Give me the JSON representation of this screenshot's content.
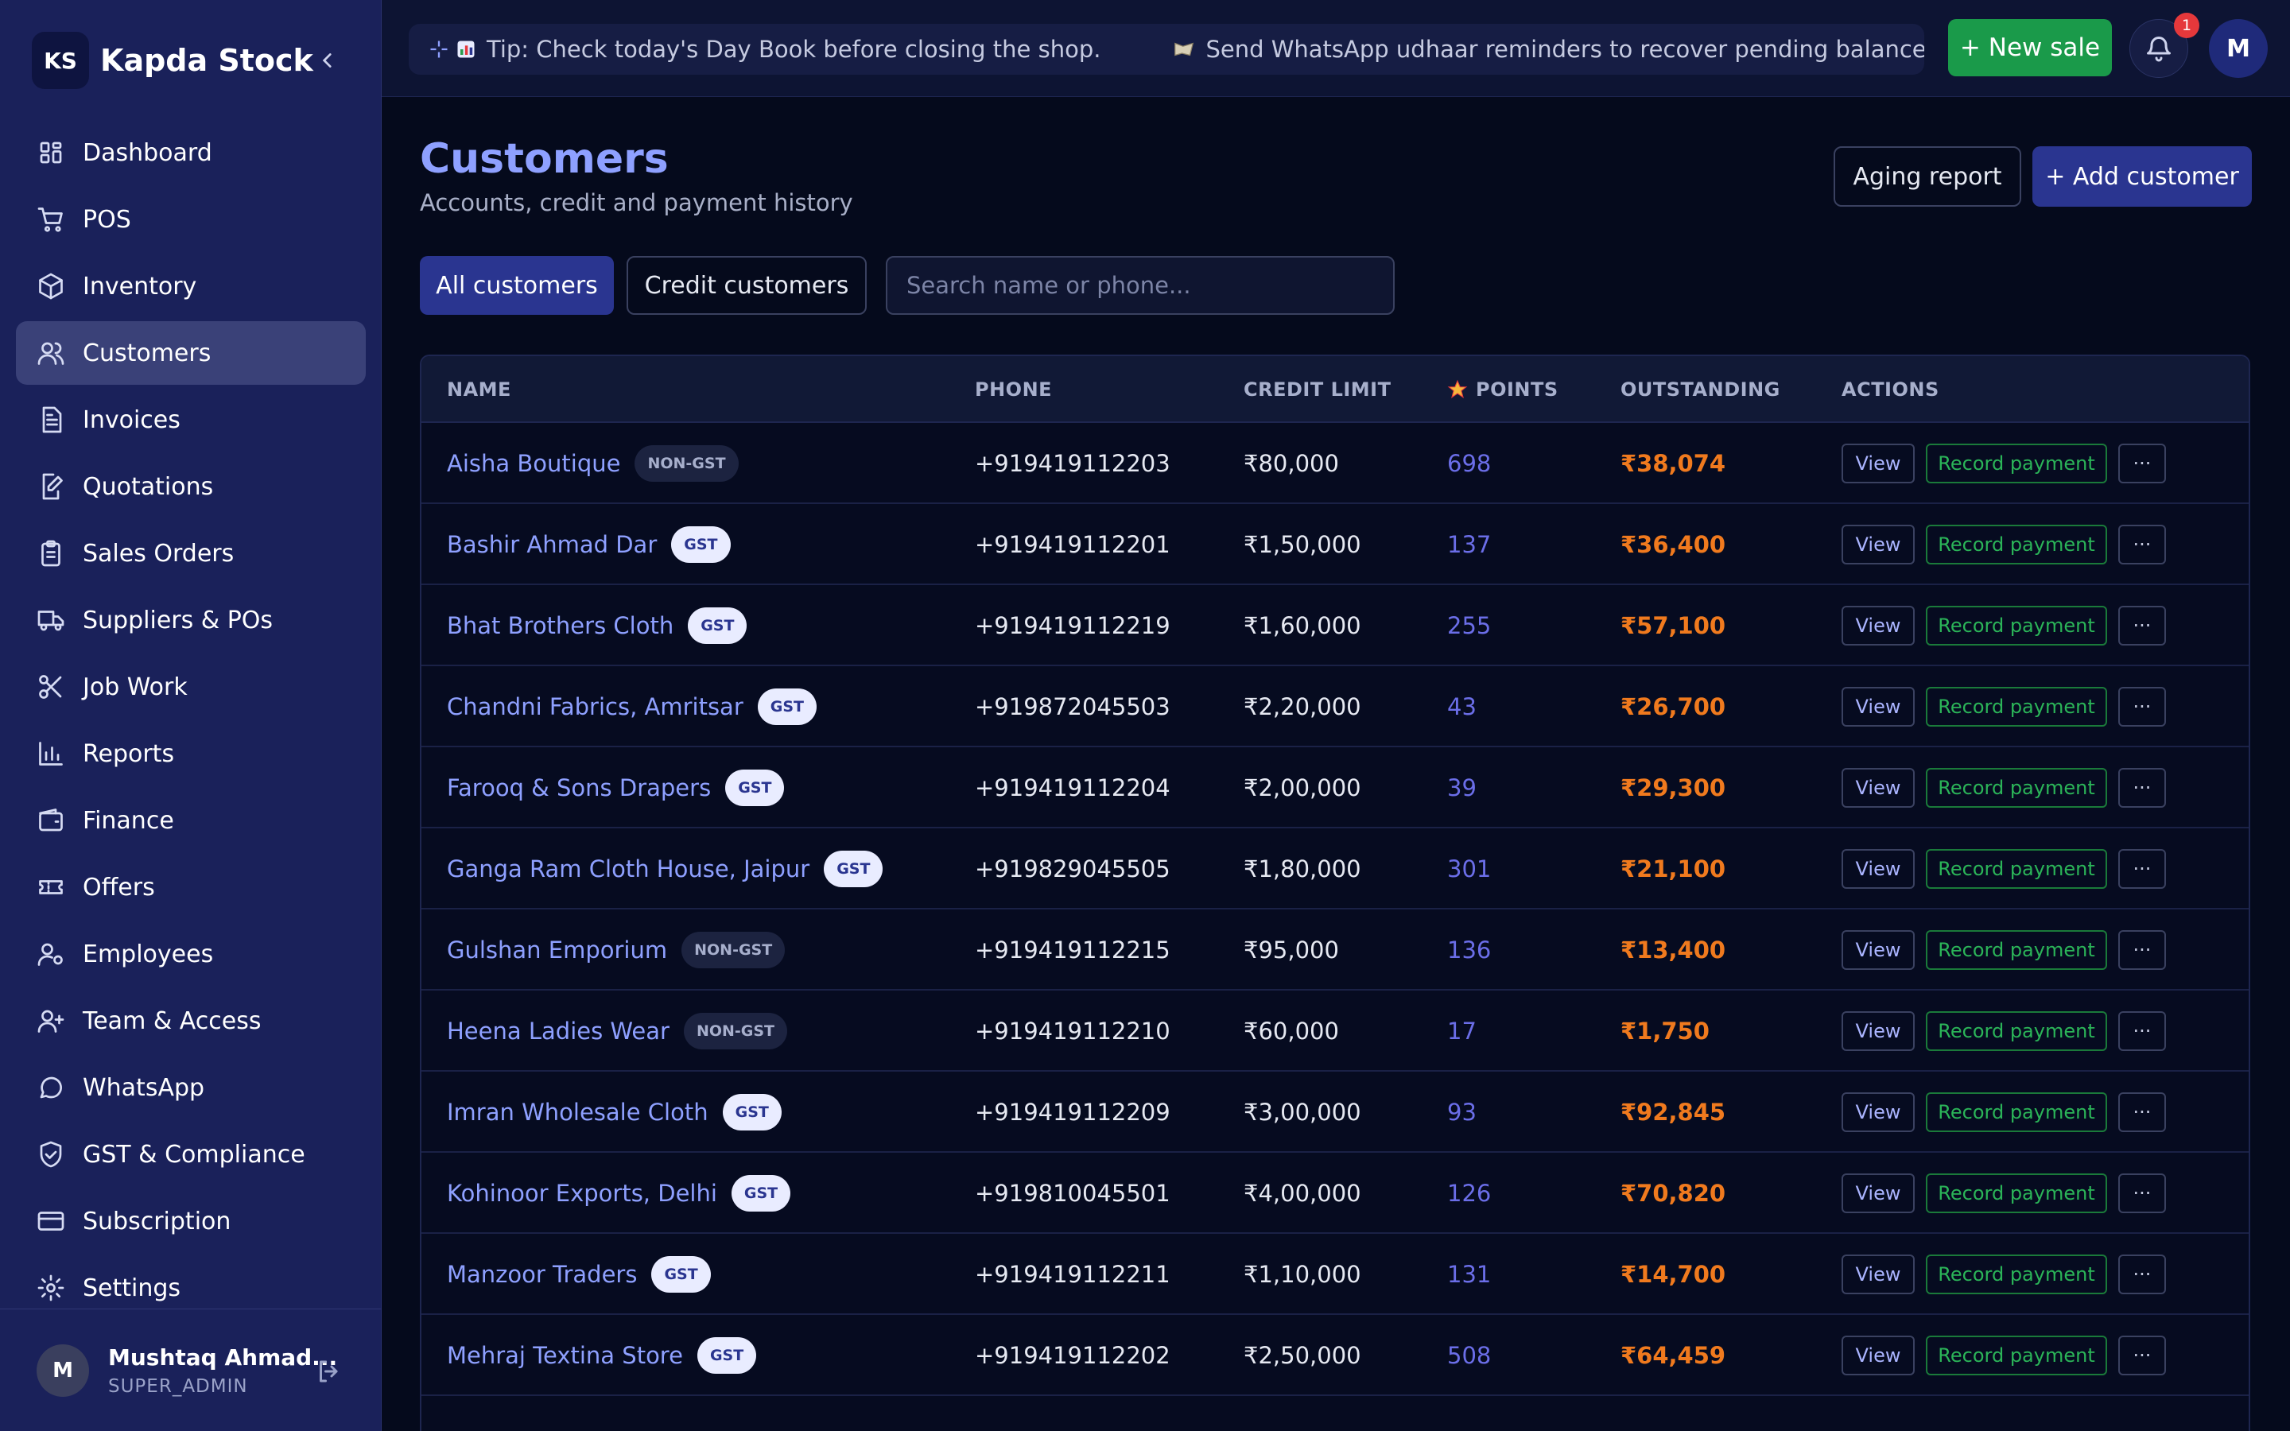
{
  "app": {
    "logo_initials": "KS",
    "name": "Kapda Stock"
  },
  "sidebar": {
    "items": [
      {
        "label": "Dashboard",
        "icon": "grid-icon",
        "active": false
      },
      {
        "label": "POS",
        "icon": "cart-icon",
        "active": false
      },
      {
        "label": "Inventory",
        "icon": "box-icon",
        "active": false
      },
      {
        "label": "Customers",
        "icon": "users-icon",
        "active": true
      },
      {
        "label": "Invoices",
        "icon": "document-icon",
        "active": false
      },
      {
        "label": "Quotations",
        "icon": "edit-doc-icon",
        "active": false
      },
      {
        "label": "Sales Orders",
        "icon": "clipboard-icon",
        "active": false
      },
      {
        "label": "Suppliers & POs",
        "icon": "truck-icon",
        "active": false
      },
      {
        "label": "Job Work",
        "icon": "scissors-icon",
        "active": false
      },
      {
        "label": "Reports",
        "icon": "bar-chart-icon",
        "active": false
      },
      {
        "label": "Finance",
        "icon": "wallet-icon",
        "active": false
      },
      {
        "label": "Offers",
        "icon": "ticket-icon",
        "active": false
      },
      {
        "label": "Employees",
        "icon": "user-cog-icon",
        "active": false
      },
      {
        "label": "Team & Access",
        "icon": "user-plus-icon",
        "active": false
      },
      {
        "label": "WhatsApp",
        "icon": "chat-icon",
        "active": false
      },
      {
        "label": "GST & Compliance",
        "icon": "shield-check-icon",
        "active": false
      },
      {
        "label": "Subscription",
        "icon": "credit-card-icon",
        "active": false
      },
      {
        "label": "Settings",
        "icon": "gear-icon",
        "active": false
      }
    ],
    "user": {
      "initial": "M",
      "name": "Mushtaq Ahmad...",
      "role": "SUPER_ADMIN"
    }
  },
  "topbar": {
    "tip1": "Tip: Check today's Day Book before closing the shop.",
    "tip2": "Send WhatsApp udhaar reminders to recover pending balances faster.",
    "new_sale": "+ New sale",
    "notification_count": "1",
    "avatar_initial": "M"
  },
  "header": {
    "title": "Customers",
    "subtitle": "Accounts, credit and payment history",
    "aging_report": "Aging report",
    "add_customer": "+ Add customer"
  },
  "filters": {
    "all": "All customers",
    "credit": "Credit customers",
    "search_placeholder": "Search name or phone..."
  },
  "table": {
    "columns": [
      "NAME",
      "PHONE",
      "CREDIT LIMIT",
      "POINTS",
      "OUTSTANDING",
      "ACTIONS"
    ],
    "actions": {
      "view": "View",
      "pay": "Record payment",
      "more": "···"
    },
    "rows": [
      {
        "name": "Aisha Boutique",
        "tag": "NON-GST",
        "phone": "+919419112203",
        "limit": "₹80,000",
        "points": "698",
        "outstanding": "₹38,074"
      },
      {
        "name": "Bashir Ahmad Dar",
        "tag": "GST",
        "phone": "+919419112201",
        "limit": "₹1,50,000",
        "points": "137",
        "outstanding": "₹36,400"
      },
      {
        "name": "Bhat Brothers Cloth",
        "tag": "GST",
        "phone": "+919419112219",
        "limit": "₹1,60,000",
        "points": "255",
        "outstanding": "₹57,100"
      },
      {
        "name": "Chandni Fabrics, Amritsar",
        "tag": "GST",
        "phone": "+919872045503",
        "limit": "₹2,20,000",
        "points": "43",
        "outstanding": "₹26,700"
      },
      {
        "name": "Farooq & Sons Drapers",
        "tag": "GST",
        "phone": "+919419112204",
        "limit": "₹2,00,000",
        "points": "39",
        "outstanding": "₹29,300"
      },
      {
        "name": "Ganga Ram Cloth House, Jaipur",
        "tag": "GST",
        "phone": "+919829045505",
        "limit": "₹1,80,000",
        "points": "301",
        "outstanding": "₹21,100"
      },
      {
        "name": "Gulshan Emporium",
        "tag": "NON-GST",
        "phone": "+919419112215",
        "limit": "₹95,000",
        "points": "136",
        "outstanding": "₹13,400"
      },
      {
        "name": "Heena Ladies Wear",
        "tag": "NON-GST",
        "phone": "+919419112210",
        "limit": "₹60,000",
        "points": "17",
        "outstanding": "₹1,750"
      },
      {
        "name": "Imran Wholesale Cloth",
        "tag": "GST",
        "phone": "+919419112209",
        "limit": "₹3,00,000",
        "points": "93",
        "outstanding": "₹92,845"
      },
      {
        "name": "Kohinoor Exports, Delhi",
        "tag": "GST",
        "phone": "+919810045501",
        "limit": "₹4,00,000",
        "points": "126",
        "outstanding": "₹70,820"
      },
      {
        "name": "Manzoor Traders",
        "tag": "GST",
        "phone": "+919419112211",
        "limit": "₹1,10,000",
        "points": "131",
        "outstanding": "₹14,700"
      },
      {
        "name": "Mehraj Textina Store",
        "tag": "GST",
        "phone": "+919419112202",
        "limit": "₹2,50,000",
        "points": "508",
        "outstanding": "₹64,459"
      }
    ]
  }
}
